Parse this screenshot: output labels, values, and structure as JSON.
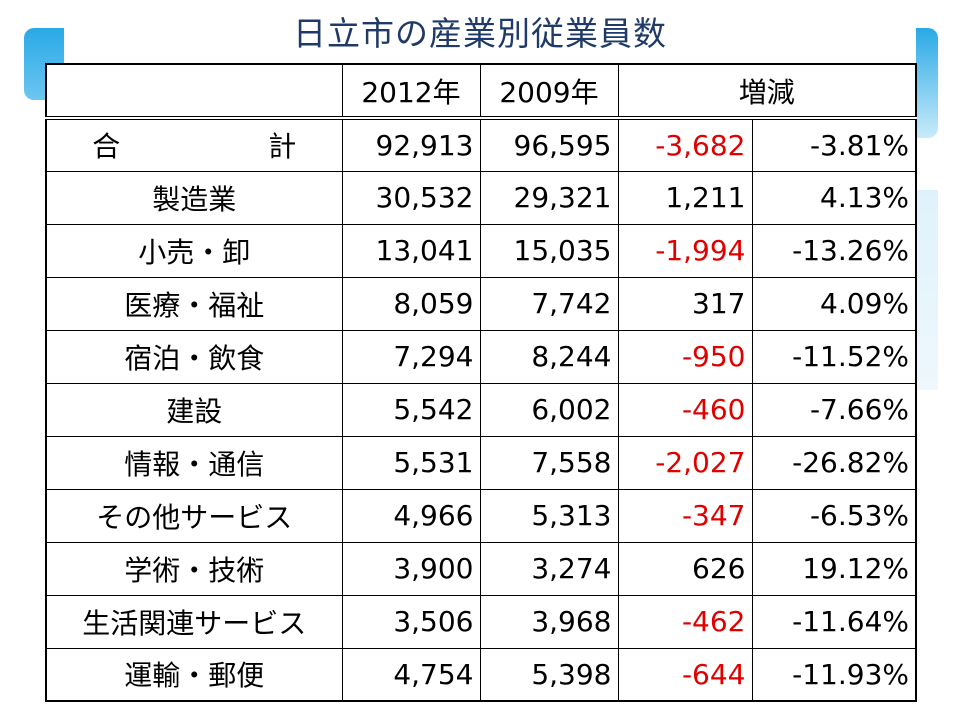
{
  "title": "日立市の産業別従業員数",
  "header": {
    "col_2012": "2012年",
    "col_2009": "2009年",
    "col_change": "増減"
  },
  "rows": [
    {
      "category": "合　計",
      "y2012": "92,913",
      "y2009": "96,595",
      "diff": "-3,682",
      "pct": "-3.81%"
    },
    {
      "category": "製造業",
      "y2012": "30,532",
      "y2009": "29,321",
      "diff": "1,211",
      "pct": "4.13%"
    },
    {
      "category": "小売・卸",
      "y2012": "13,041",
      "y2009": "15,035",
      "diff": "-1,994",
      "pct": "-13.26%"
    },
    {
      "category": "医療・福祉",
      "y2012": "8,059",
      "y2009": "7,742",
      "diff": "317",
      "pct": "4.09%"
    },
    {
      "category": "宿泊・飲食",
      "y2012": "7,294",
      "y2009": "8,244",
      "diff": "-950",
      "pct": "-11.52%"
    },
    {
      "category": "建設",
      "y2012": "5,542",
      "y2009": "6,002",
      "diff": "-460",
      "pct": "-7.66%"
    },
    {
      "category": "情報・通信",
      "y2012": "5,531",
      "y2009": "7,558",
      "diff": "-2,027",
      "pct": "-26.82%"
    },
    {
      "category": "その他サービス",
      "y2012": "4,966",
      "y2009": "5,313",
      "diff": "-347",
      "pct": "-6.53%"
    },
    {
      "category": "学術・技術",
      "y2012": "3,900",
      "y2009": "3,274",
      "diff": "626",
      "pct": "19.12%"
    },
    {
      "category": "生活関連サービス",
      "y2012": "3,506",
      "y2009": "3,968",
      "diff": "-462",
      "pct": "-11.64%"
    },
    {
      "category": "運輸・郵便",
      "y2012": "4,754",
      "y2009": "5,398",
      "diff": "-644",
      "pct": "-11.93%"
    }
  ],
  "colors": {
    "negative": "#e00000",
    "title": "#1f3a68",
    "accent": "#29a9e6"
  }
}
